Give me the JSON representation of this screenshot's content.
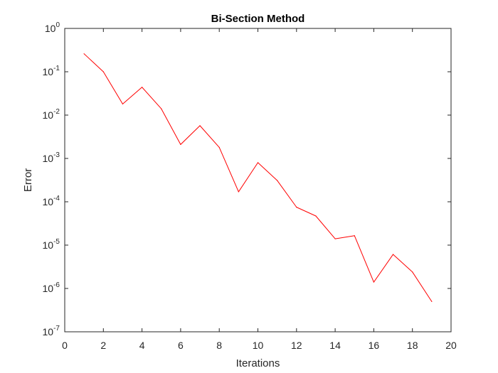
{
  "chart_data": {
    "type": "line",
    "title": "Bi-Section Method",
    "xlabel": "Iterations",
    "ylabel": "Error",
    "xlim": [
      0,
      20
    ],
    "ylim": [
      1e-07,
      1
    ],
    "yscale": "log",
    "grid": false,
    "box": true,
    "x_ticks": [
      0,
      2,
      4,
      6,
      8,
      10,
      12,
      14,
      16,
      18,
      20
    ],
    "y_tick_exponents": [
      0,
      -1,
      -2,
      -3,
      -4,
      -5,
      -6,
      -7
    ],
    "y_tick_base": "10",
    "series": [
      {
        "color": "#ff0000",
        "x": [
          1,
          2,
          3,
          4,
          5,
          6,
          7,
          8,
          9,
          10,
          11,
          12,
          13,
          14,
          15,
          16,
          17,
          18,
          19
        ],
        "y": [
          0.26,
          0.1,
          0.018,
          0.044,
          0.014,
          0.0021,
          0.0057,
          0.0018,
          0.00017,
          0.0008,
          0.00031,
          7.5e-05,
          4.7e-05,
          1.4e-05,
          1.65e-05,
          1.4e-06,
          6.1e-06,
          2.4e-06,
          5e-07
        ]
      }
    ]
  }
}
